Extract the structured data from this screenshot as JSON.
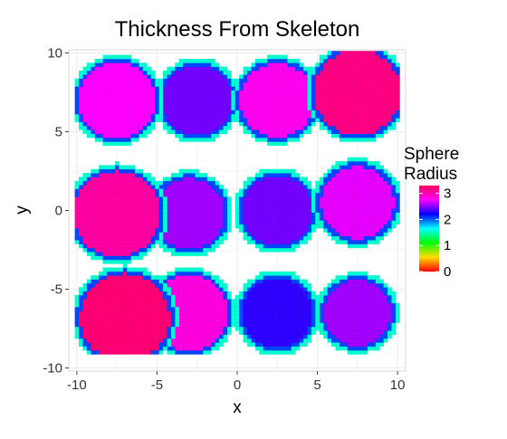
{
  "chart_data": {
    "type": "heatmap",
    "title": "Thickness From Skeleton",
    "xlabel": "x",
    "ylabel": "y",
    "xlim": [
      -10.5,
      10.5
    ],
    "ylim": [
      -10.2,
      10.2
    ],
    "x_ticks": [
      -10,
      -5,
      0,
      5,
      10
    ],
    "x_tick_labels": [
      "-10",
      "-5",
      "0",
      "5",
      "10"
    ],
    "y_ticks": [
      -10,
      -5,
      0,
      5,
      10
    ],
    "y_tick_labels": [
      "-10",
      "-5",
      "0",
      "5",
      "10"
    ],
    "grid": true,
    "panel_background": "#ffffff",
    "grid_color": "#ebebeb",
    "legend": {
      "title_lines": [
        "Sphere",
        "Radius"
      ],
      "position": "right",
      "ticks": [
        0,
        1,
        2,
        3
      ],
      "tick_labels": [
        "0",
        "1",
        "2",
        "3"
      ],
      "range": [
        0,
        3.3
      ],
      "color_stops": [
        {
          "value": 0.0,
          "color": "#ff0000"
        },
        {
          "value": 0.55,
          "color": "#ffdd00"
        },
        {
          "value": 1.1,
          "color": "#00ff00"
        },
        {
          "value": 1.65,
          "color": "#00ffff"
        },
        {
          "value": 2.2,
          "color": "#0000ff"
        },
        {
          "value": 2.75,
          "color": "#ff00ff"
        },
        {
          "value": 3.3,
          "color": "#ff0055"
        }
      ]
    },
    "circles": [
      {
        "cx": -7.5,
        "cy": 7,
        "r": 2.9,
        "value": 2.75
      },
      {
        "cx": -2.5,
        "cy": 7,
        "r": 2.7,
        "value": 2.45
      },
      {
        "cx": 2.5,
        "cy": 7,
        "r": 2.85,
        "value": 2.8
      },
      {
        "cx": 7.5,
        "cy": 7.5,
        "r": 3.2,
        "value": 3.15
      },
      {
        "cx": -7.5,
        "cy": -0.2,
        "r": 3.2,
        "value": 3.05
      },
      {
        "cx": -3,
        "cy": -0.2,
        "r": 2.75,
        "value": 2.55
      },
      {
        "cx": 2.5,
        "cy": 0,
        "r": 2.7,
        "value": 2.45
      },
      {
        "cx": 7.5,
        "cy": 0.5,
        "r": 2.8,
        "value": 2.7
      },
      {
        "cx": -7,
        "cy": -6.8,
        "r": 3.3,
        "value": 3.2
      },
      {
        "cx": -3,
        "cy": -6.5,
        "r": 2.9,
        "value": 2.85
      },
      {
        "cx": 2.5,
        "cy": -6.5,
        "r": 2.7,
        "value": 2.3
      },
      {
        "cx": 7.5,
        "cy": -6.5,
        "r": 2.6,
        "value": 2.55
      }
    ]
  }
}
